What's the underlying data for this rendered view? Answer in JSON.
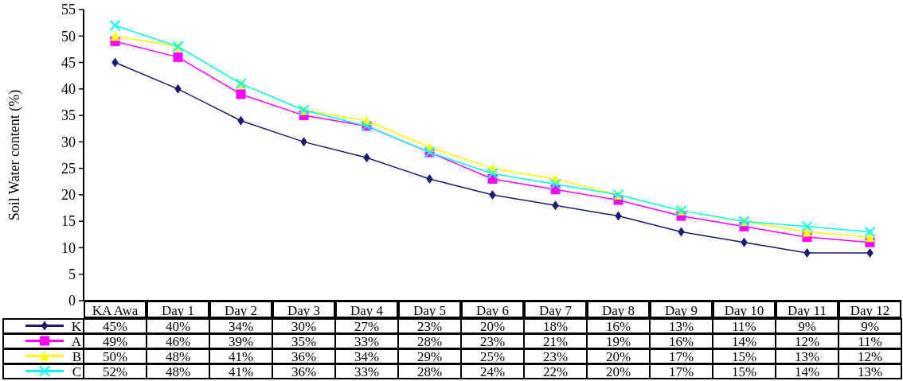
{
  "chart_data": {
    "type": "line",
    "ylabel": "Soil Water content (%)",
    "categories": [
      "KA Awa",
      "Day 1",
      "Day 2",
      "Day 3",
      "Day 4",
      "Day 5",
      "Day 6",
      "Day 7",
      "Day 8",
      "Day 9",
      "Day 10",
      "Day 11",
      "Day 12"
    ],
    "ylim": [
      0,
      55
    ],
    "yticks": [
      0,
      5,
      10,
      15,
      20,
      25,
      30,
      35,
      40,
      45,
      50,
      55
    ],
    "grid": false,
    "legend": "bottom",
    "series": [
      {
        "name": "K",
        "color": "#1a1a6e",
        "marker": "diamond",
        "values": [
          45,
          40,
          34,
          30,
          27,
          23,
          20,
          18,
          16,
          13,
          11,
          9,
          9
        ],
        "value_labels": [
          "45%",
          "40%",
          "34%",
          "30%",
          "27%",
          "23%",
          "20%",
          "18%",
          "16%",
          "13%",
          "11%",
          "9%",
          "9%"
        ]
      },
      {
        "name": "A",
        "color": "#ff00ff",
        "marker": "square",
        "values": [
          49,
          46,
          39,
          35,
          33,
          28,
          23,
          21,
          19,
          16,
          14,
          12,
          11
        ],
        "value_labels": [
          "49%",
          "46%",
          "39%",
          "35%",
          "33%",
          "28%",
          "23%",
          "21%",
          "19%",
          "16%",
          "14%",
          "12%",
          "11%"
        ]
      },
      {
        "name": "B",
        "color": "#ffff00",
        "marker": "triangle",
        "values": [
          50,
          48,
          41,
          36,
          34,
          29,
          25,
          23,
          20,
          17,
          15,
          13,
          12
        ],
        "value_labels": [
          "50%",
          "48%",
          "41%",
          "36%",
          "34%",
          "29%",
          "25%",
          "23%",
          "20%",
          "17%",
          "15%",
          "13%",
          "12%"
        ]
      },
      {
        "name": "C",
        "color": "#00ffff",
        "marker": "cross",
        "values": [
          52,
          48,
          41,
          36,
          33,
          28,
          24,
          22,
          20,
          17,
          15,
          14,
          13
        ],
        "value_labels": [
          "52%",
          "48%",
          "41%",
          "36%",
          "33%",
          "28%",
          "24%",
          "22%",
          "20%",
          "17%",
          "15%",
          "14%",
          "13%"
        ]
      }
    ]
  }
}
